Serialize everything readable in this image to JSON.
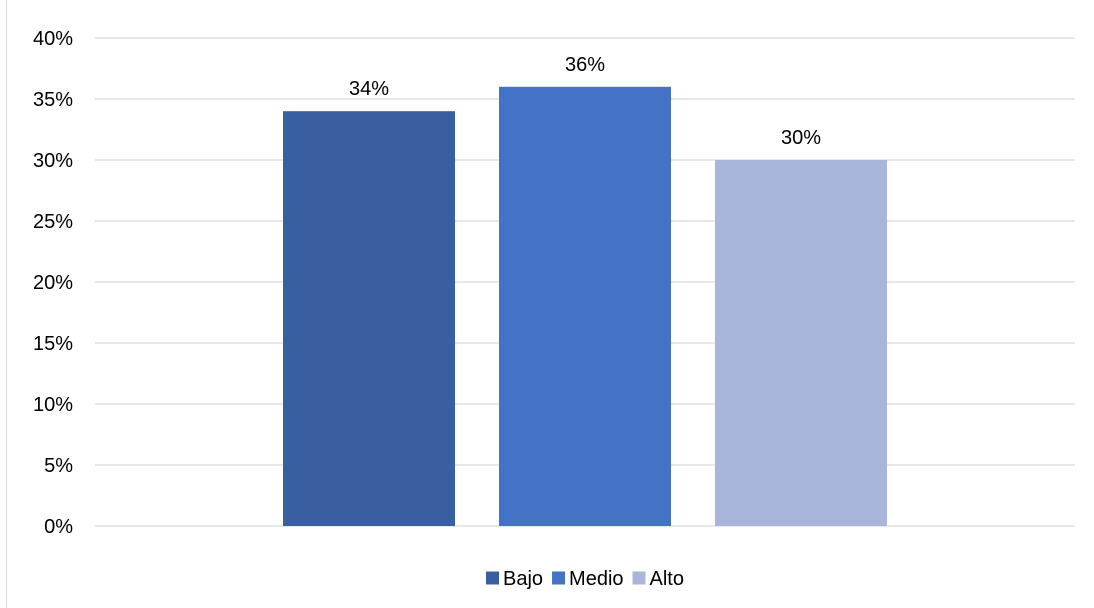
{
  "chart_data": {
    "type": "bar",
    "title": "",
    "xlabel": "",
    "ylabel": "",
    "ylim": [
      0,
      40
    ],
    "yticks": [
      "0%",
      "5%",
      "10%",
      "15%",
      "20%",
      "25%",
      "30%",
      "35%",
      "40%"
    ],
    "grid": true,
    "legend_position": "bottom",
    "series": [
      {
        "name": "Bajo",
        "values": [
          34
        ],
        "label": "34%",
        "color": "#3a5fa0"
      },
      {
        "name": "Medio",
        "values": [
          36
        ],
        "label": "36%",
        "color": "#4472c4"
      },
      {
        "name": "Alto",
        "values": [
          30
        ],
        "label": "30%",
        "color": "#a9b5da"
      }
    ]
  }
}
